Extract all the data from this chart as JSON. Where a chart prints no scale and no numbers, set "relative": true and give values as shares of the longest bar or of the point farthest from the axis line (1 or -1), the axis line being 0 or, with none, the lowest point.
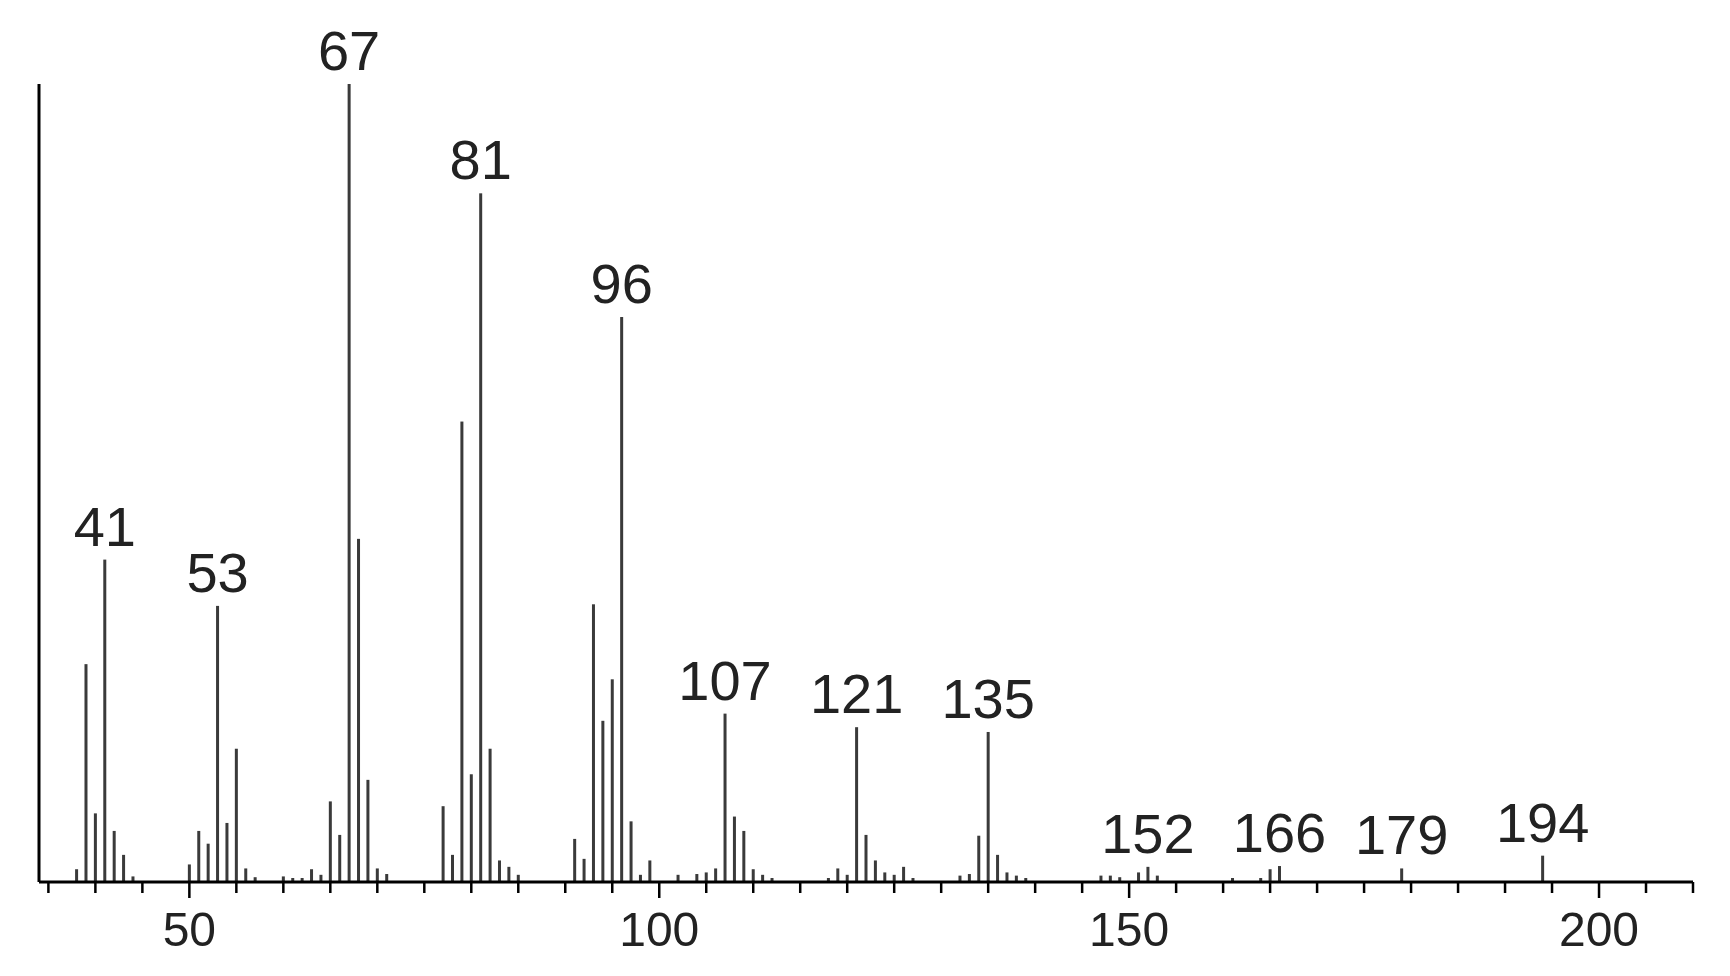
{
  "chart_data": {
    "type": "bar",
    "relative": true,
    "color": "#3a3a3a",
    "x": [
      38,
      39,
      40,
      41,
      42,
      43,
      44,
      50,
      51,
      52,
      53,
      54,
      55,
      56,
      57,
      60,
      61,
      62,
      63,
      64,
      65,
      66,
      67,
      68,
      69,
      70,
      71,
      77,
      78,
      79,
      80,
      81,
      82,
      83,
      84,
      85,
      91,
      92,
      93,
      94,
      95,
      96,
      97,
      98,
      99,
      102,
      104,
      105,
      106,
      107,
      108,
      109,
      110,
      111,
      112,
      118,
      119,
      120,
      121,
      122,
      123,
      124,
      125,
      126,
      127,
      132,
      133,
      134,
      135,
      136,
      137,
      138,
      139,
      147,
      148,
      149,
      151,
      152,
      153,
      161,
      164,
      165,
      166,
      179,
      194
    ],
    "values": [
      0.016,
      0.273,
      0.086,
      0.404,
      0.064,
      0.034,
      0.007,
      0.022,
      0.064,
      0.048,
      0.346,
      0.074,
      0.167,
      0.017,
      0.006,
      0.007,
      0.005,
      0.005,
      0.016,
      0.009,
      0.101,
      0.059,
      1,
      0.43,
      0.128,
      0.017,
      0.01,
      0.095,
      0.034,
      0.577,
      0.135,
      0.863,
      0.167,
      0.027,
      0.019,
      0.009,
      0.054,
      0.029,
      0.348,
      0.202,
      0.254,
      0.708,
      0.076,
      0.009,
      0.027,
      0.009,
      0.01,
      0.012,
      0.017,
      0.211,
      0.082,
      0.064,
      0.016,
      0.009,
      0.005,
      0.005,
      0.017,
      0.009,
      0.194,
      0.059,
      0.027,
      0.012,
      0.009,
      0.019,
      0.005,
      0.008,
      0.01,
      0.058,
      0.188,
      0.034,
      0.012,
      0.008,
      0.005,
      0.008,
      0.008,
      0.006,
      0.012,
      0.019,
      0.008,
      0.005,
      0.005,
      0.016,
      0.02,
      0.017,
      0.033
    ],
    "xlim": [
      34,
      210
    ],
    "xticks": [
      {
        "value": 35,
        "label": null
      },
      {
        "value": 40,
        "label": null
      },
      {
        "value": 45,
        "label": null
      },
      50,
      {
        "value": 55,
        "label": null
      },
      {
        "value": 60,
        "label": null
      },
      {
        "value": 65,
        "label": null
      },
      {
        "value": 70,
        "label": null
      },
      {
        "value": 75,
        "label": null
      },
      {
        "value": 80,
        "label": null
      },
      {
        "value": 85,
        "label": null
      },
      {
        "value": 90,
        "label": null
      },
      {
        "value": 95,
        "label": null
      },
      100,
      {
        "value": 105,
        "label": null
      },
      {
        "value": 110,
        "label": null
      },
      {
        "value": 115,
        "label": null
      },
      {
        "value": 120,
        "label": null
      },
      {
        "value": 125,
        "label": null
      },
      {
        "value": 130,
        "label": null
      },
      {
        "value": 135,
        "label": null
      },
      {
        "value": 140,
        "label": null
      },
      {
        "value": 145,
        "label": null
      },
      150,
      {
        "value": 155,
        "label": null
      },
      {
        "value": 160,
        "label": null
      },
      {
        "value": 165,
        "label": null
      },
      {
        "value": 170,
        "label": null
      },
      {
        "value": 175,
        "label": null
      },
      {
        "value": 180,
        "label": null
      },
      {
        "value": 185,
        "label": null
      },
      {
        "value": 190,
        "label": null
      },
      {
        "value": 195,
        "label": null
      },
      200,
      {
        "value": 205,
        "label": null
      },
      {
        "value": 210,
        "label": null
      }
    ],
    "annotations": [
      {
        "text": "41",
        "x": 41,
        "y": 0.404
      },
      {
        "text": "53",
        "x": 53,
        "y": 0.346
      },
      {
        "text": "67",
        "x": 67,
        "y": 1
      },
      {
        "text": "81",
        "x": 81,
        "y": 0.863
      },
      {
        "text": "96",
        "x": 96,
        "y": 0.708
      },
      {
        "text": "107",
        "x": 107,
        "y": 0.211
      },
      {
        "text": "121",
        "x": 121,
        "y": 0.194
      },
      {
        "text": "135",
        "x": 135,
        "y": 0.188
      },
      {
        "text": "152",
        "x": 152,
        "y": 0.019
      },
      {
        "text": "166",
        "x": 166,
        "y": 0.02
      },
      {
        "text": "179",
        "x": 179,
        "y": 0.017
      },
      {
        "text": "194",
        "x": 194,
        "y": 0.033
      }
    ]
  }
}
